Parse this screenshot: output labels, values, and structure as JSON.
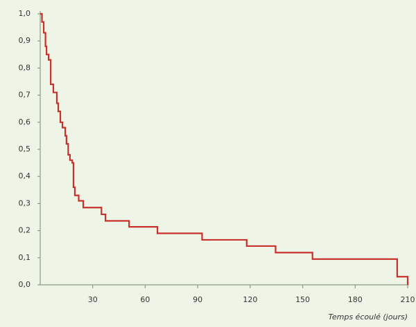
{
  "chart_data": {
    "type": "line",
    "step": true,
    "color": "#c9302c",
    "x_label": "Temps écoulé (jours)",
    "x": [
      0,
      1,
      2,
      3,
      3.6,
      4.8,
      6,
      7.5,
      9.5,
      10.3,
      11.5,
      12.7,
      14.3,
      15,
      16,
      17,
      18.3,
      19,
      19.8,
      22,
      24.6,
      35,
      37.3,
      50.8,
      67,
      92.5,
      118,
      134.5,
      155.6,
      204,
      210
    ],
    "values": [
      1.0,
      0.97,
      0.93,
      0.88,
      0.85,
      0.83,
      0.74,
      0.71,
      0.67,
      0.64,
      0.6,
      0.58,
      0.55,
      0.52,
      0.48,
      0.46,
      0.45,
      0.36,
      0.33,
      0.31,
      0.285,
      0.26,
      0.236,
      0.214,
      0.19,
      0.166,
      0.143,
      0.119,
      0.095,
      0.03,
      0.0
    ],
    "xlim": [
      0,
      210
    ],
    "xticks": [
      30,
      60,
      90,
      120,
      150,
      180,
      210
    ],
    "ylim": [
      0,
      1
    ],
    "yticks": [
      {
        "value": 0,
        "label": "0,0"
      },
      {
        "value": 0.1,
        "label": "0,1"
      },
      {
        "value": 0.2,
        "label": "0,2"
      },
      {
        "value": 0.3,
        "label": "0,3"
      },
      {
        "value": 0.4,
        "label": "0,4"
      },
      {
        "value": 0.5,
        "label": "0,5"
      },
      {
        "value": 0.6,
        "label": "0,6"
      },
      {
        "value": 0.7,
        "label": "0,7"
      },
      {
        "value": 0.8,
        "label": "0,8"
      },
      {
        "value": 0.9,
        "label": "0,9"
      },
      {
        "value": 1.0,
        "label": "1,0"
      }
    ]
  }
}
